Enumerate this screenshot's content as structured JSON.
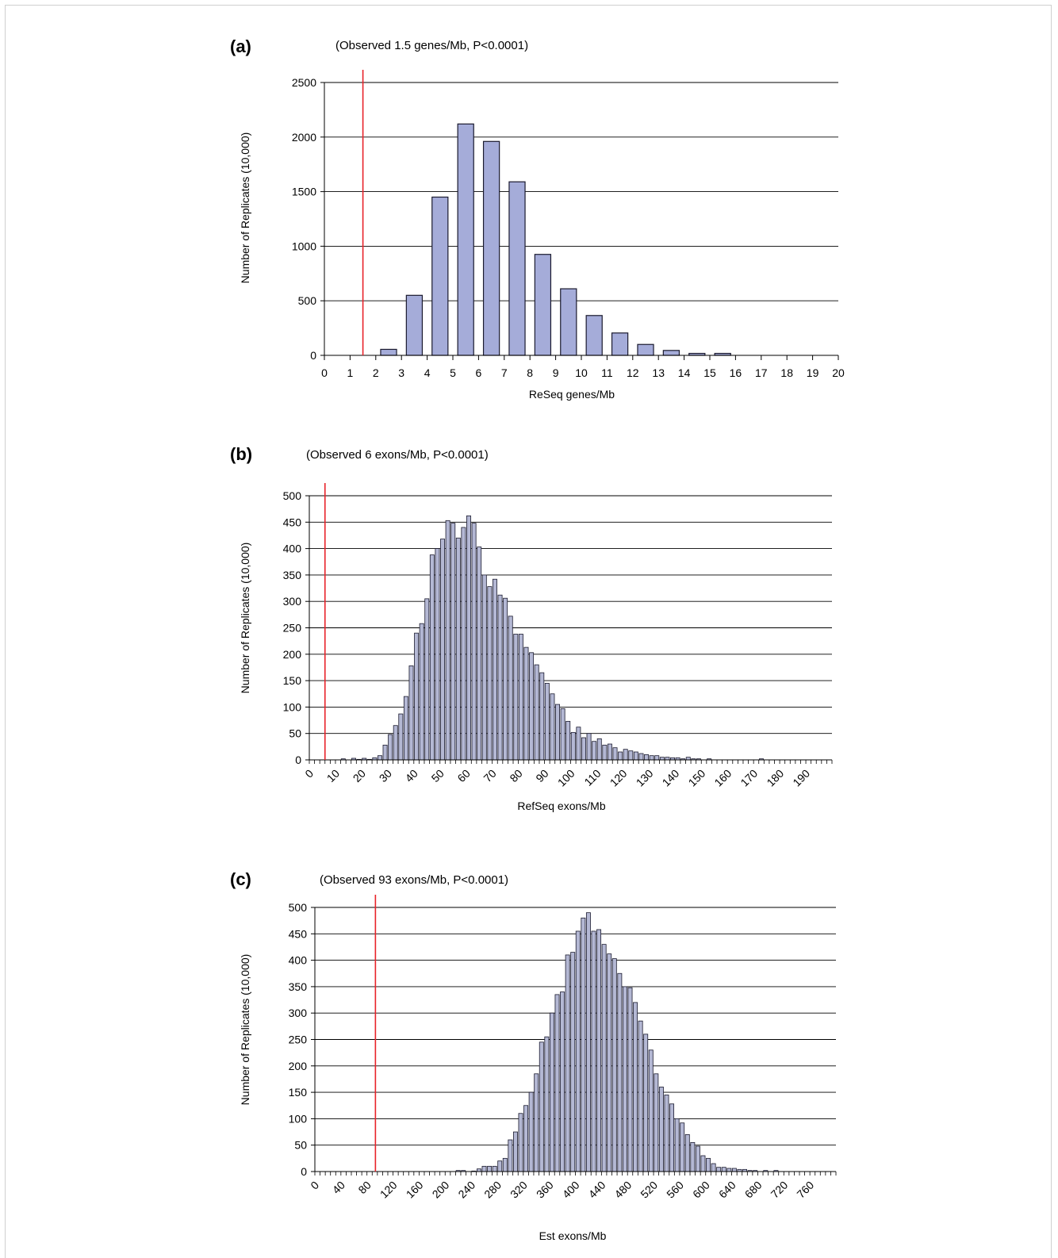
{
  "colors": {
    "bar_fill": "#a5acd9",
    "bar_fill_hist": "#b4b8d4",
    "bar_stroke": "#1a1a2e",
    "observed_line": "#e8232a",
    "grid": "#000000"
  },
  "chart_data": [
    {
      "panel_label": "(a)",
      "type": "bar",
      "annotation": "(Observed 1.5 genes/Mb, P<0.0001)",
      "xlabel": "ReSeq genes/Mb",
      "ylabel": "Number of Replicates (10,000)",
      "xlim": [
        0,
        20
      ],
      "ylim": [
        0,
        2500
      ],
      "yticks": [
        0,
        500,
        1000,
        1500,
        2000,
        2500
      ],
      "xtick_labels": [
        "0",
        "1",
        "2",
        "3",
        "4",
        "5",
        "6",
        "7",
        "8",
        "9",
        "10",
        "11",
        "12",
        "13",
        "14",
        "15",
        "16",
        "17",
        "18",
        "19",
        "20"
      ],
      "bin_width": 1,
      "x": [
        2.5,
        3.5,
        4.5,
        5.5,
        6.5,
        7.5,
        8.5,
        9.5,
        10.5,
        11.5,
        12.5,
        13.5,
        14.5,
        15.5
      ],
      "values": [
        55,
        550,
        1450,
        2120,
        1960,
        1590,
        925,
        610,
        365,
        205,
        100,
        45,
        18,
        18
      ],
      "observed": 1.5,
      "grid": true,
      "legend": "none"
    },
    {
      "panel_label": "(b)",
      "type": "bar",
      "annotation": "(Observed 6 exons/Mb, P<0.0001)",
      "xlabel": "RefSeq exons/Mb",
      "ylabel": "Number of Replicates (10,000)",
      "xlim": [
        0,
        200
      ],
      "ylim": [
        0,
        500
      ],
      "yticks": [
        0,
        50,
        100,
        150,
        200,
        250,
        300,
        350,
        400,
        450,
        500
      ],
      "xtick_labels": [
        "0",
        "10",
        "20",
        "30",
        "40",
        "50",
        "60",
        "70",
        "80",
        "90",
        "100",
        "110",
        "120",
        "130",
        "140",
        "150",
        "160",
        "170",
        "180",
        "190"
      ],
      "bin_width": 2,
      "x_start": 1,
      "values": [
        0,
        0,
        0,
        0,
        0,
        0,
        2,
        0,
        3,
        1,
        3,
        1,
        4,
        8,
        28,
        48,
        65,
        87,
        120,
        178,
        240,
        258,
        305,
        388,
        400,
        418,
        453,
        448,
        420,
        440,
        462,
        448,
        403,
        350,
        328,
        342,
        312,
        306,
        272,
        238,
        238,
        213,
        203,
        180,
        165,
        145,
        125,
        105,
        97,
        73,
        52,
        62,
        42,
        50,
        35,
        40,
        28,
        30,
        23,
        15,
        20,
        17,
        15,
        12,
        10,
        8,
        8,
        5,
        5,
        4,
        4,
        2,
        5,
        2,
        2,
        0,
        2,
        0,
        0,
        0,
        0,
        0,
        0,
        0,
        0,
        0,
        2,
        0,
        0,
        0,
        0,
        0,
        0,
        0,
        0,
        0,
        0,
        0,
        0,
        0
      ],
      "observed": 6,
      "grid": true,
      "legend": "none"
    },
    {
      "panel_label": "(c)",
      "type": "bar",
      "annotation": "(Observed 93 exons/Mb, P<0.0001)",
      "xlabel": "Est exons/Mb",
      "ylabel": "Number of Replicates (10,000)",
      "xlim": [
        0,
        800
      ],
      "ylim": [
        0,
        500
      ],
      "yticks": [
        0,
        50,
        100,
        150,
        200,
        250,
        300,
        350,
        400,
        450,
        500
      ],
      "xtick_labels": [
        "0",
        "40",
        "80",
        "120",
        "160",
        "200",
        "240",
        "280",
        "320",
        "360",
        "400",
        "440",
        "480",
        "520",
        "560",
        "600",
        "640",
        "680",
        "720",
        "760"
      ],
      "bin_width": 8,
      "x_start": 4,
      "values": [
        0,
        0,
        0,
        0,
        0,
        0,
        0,
        0,
        0,
        0,
        0,
        0,
        0,
        0,
        0,
        0,
        0,
        0,
        0,
        0,
        0,
        0,
        0,
        0,
        0,
        0,
        0,
        2,
        2,
        0,
        1,
        5,
        10,
        10,
        10,
        20,
        25,
        60,
        75,
        110,
        125,
        150,
        185,
        245,
        255,
        300,
        335,
        340,
        410,
        415,
        455,
        480,
        490,
        455,
        458,
        430,
        412,
        403,
        375,
        350,
        348,
        320,
        285,
        260,
        230,
        185,
        160,
        145,
        128,
        100,
        92,
        70,
        55,
        48,
        30,
        25,
        15,
        8,
        8,
        6,
        6,
        4,
        4,
        2,
        2,
        0,
        2,
        0,
        2,
        0,
        0,
        0,
        0,
        0,
        0,
        0,
        0,
        0,
        0,
        0
      ],
      "observed": 93,
      "grid": true,
      "legend": "none"
    }
  ]
}
